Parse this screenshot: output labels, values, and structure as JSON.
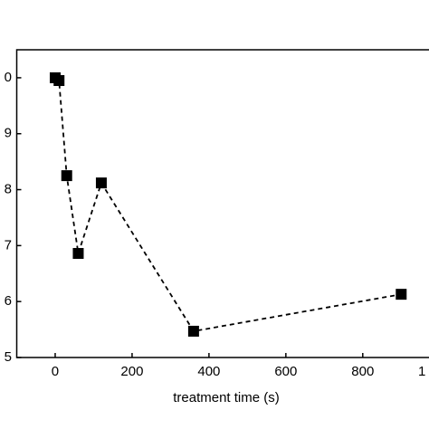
{
  "chart_data": {
    "type": "line",
    "x_label": "treatment time (s)",
    "x": [
      0,
      10,
      30,
      60,
      120,
      360,
      900
    ],
    "series": [
      {
        "color": "#000000",
        "values": [
          10,
          9.95,
          8.25,
          6.86,
          8.12,
          5.47,
          6.13
        ]
      }
    ],
    "xlim": [
      -100,
      1050
    ],
    "xticks": [
      0,
      200,
      400,
      600,
      800,
      {
        "value": 1000,
        "label": "1"
      }
    ],
    "ylim": [
      5,
      10.5
    ],
    "yticks": [
      5,
      6,
      7,
      8,
      9,
      {
        "value": 10,
        "label": "0"
      }
    ],
    "line_style": "dashed",
    "marker": "square"
  }
}
